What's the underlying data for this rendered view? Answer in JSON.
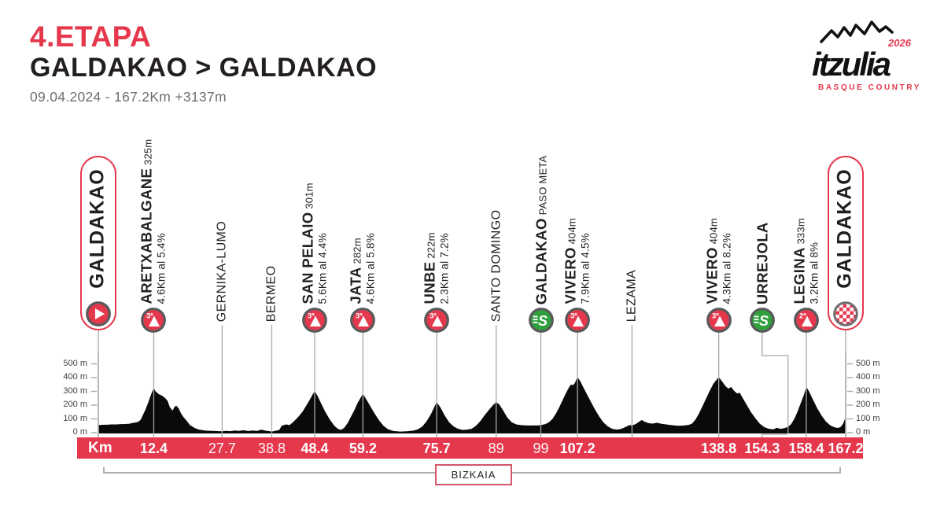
{
  "header": {
    "stage": "4.ETAPA",
    "route": "GALDAKAO > GALDAKAO",
    "meta": "09.04.2024 - 167.2Km  +3137m"
  },
  "logo": {
    "wordmark": "itzulia",
    "year": "2026",
    "subtitle": "BASQUE COUNTRY"
  },
  "colors": {
    "red": "#e5384d",
    "green": "#2fa03c",
    "black": "#0a0a0a",
    "icon_ring": "#58595b",
    "line_gray": "#a6a8ab",
    "text_gray": "#6d6e71"
  },
  "km_bar": {
    "label": "Km"
  },
  "region": {
    "label": "BIZKAIA"
  },
  "axis": {
    "tick_labels": [
      "0 m",
      "100 m",
      "200 m",
      "300 m",
      "400 m",
      "500 m"
    ],
    "tick_values": [
      0,
      100,
      200,
      300,
      400,
      500
    ]
  },
  "markers": [
    {
      "name": "GALDAKAO",
      "type": "start",
      "km": 0,
      "km_display": ""
    },
    {
      "name": "ARETXABALGANE",
      "alt": "325m",
      "detail": "4.6Km al 5.4%",
      "type": "climb",
      "cat": "3ª",
      "km": 12.4,
      "km_display": "12.4",
      "km_bold": true
    },
    {
      "name": "GERNIKA-LUMO",
      "type": "town",
      "km": 27.7,
      "km_display": "27.7",
      "km_bold": false
    },
    {
      "name": "BERMEO",
      "type": "town",
      "km": 38.8,
      "km_display": "38.8",
      "km_bold": false
    },
    {
      "name": "SAN PELAIO",
      "alt": "301m",
      "detail": "5.6Km al 4.4%",
      "type": "climb",
      "cat": "3ª",
      "km": 48.4,
      "km_display": "48.4",
      "km_bold": true
    },
    {
      "name": "JATA",
      "alt": "282m",
      "detail": "4.6Km al 5.8%",
      "type": "climb",
      "cat": "3ª",
      "km": 59.2,
      "km_display": "59.2",
      "km_bold": true
    },
    {
      "name": "UNBE",
      "alt": "222m",
      "detail": "2.3Km al 7.2%",
      "type": "climb",
      "cat": "3ª",
      "km": 75.7,
      "km_display": "75.7",
      "km_bold": true
    },
    {
      "name": "SANTO DOMINGO",
      "type": "town",
      "km": 89,
      "km_display": "89",
      "km_bold": false
    },
    {
      "name": "GALDAKAO",
      "alt": "PASO META",
      "type": "sprint",
      "km": 99,
      "km_display": "99",
      "km_bold": false
    },
    {
      "name": "VIVERO",
      "alt": "404m",
      "detail": "7.9Km al 4.5%",
      "type": "climb",
      "cat": "3ª",
      "km": 107.2,
      "km_display": "107.2",
      "km_bold": true
    },
    {
      "name": "LEZAMA",
      "type": "town",
      "km": 119.4,
      "km_display": ""
    },
    {
      "name": "VIVERO",
      "alt": "404m",
      "detail": "4.3Km al 8.2%",
      "type": "climb",
      "cat": "3ª",
      "km": 138.8,
      "km_display": "138.8",
      "km_bold": true
    },
    {
      "name": "URREJOLA",
      "type": "sprint",
      "km": 154.3,
      "display_km": 148.5,
      "km_display": "154.3",
      "km_bold": true
    },
    {
      "name": "LEGINA",
      "alt": "333m",
      "detail": "3.2Km al 8%",
      "type": "climb",
      "cat": "2ª",
      "km": 158.4,
      "km_display": "158.4",
      "km_bold": true
    },
    {
      "name": "GALDAKAO",
      "type": "finish",
      "km": 167.2,
      "km_display": "167.2",
      "km_bold": true
    }
  ],
  "chart_data": {
    "type": "area",
    "title": "Itzulia Basque Country - Stage 4 elevation profile",
    "xlabel": "Km",
    "ylabel": "m",
    "xlim": [
      0,
      167.2
    ],
    "ylim": [
      0,
      500
    ],
    "y_ticks": [
      0,
      100,
      200,
      300,
      400,
      500
    ],
    "total_km": 167.2,
    "total_climb_m": 3137,
    "profile_km_m": [
      [
        0,
        55
      ],
      [
        1,
        57
      ],
      [
        2,
        58
      ],
      [
        3,
        60
      ],
      [
        4,
        60
      ],
      [
        5,
        62
      ],
      [
        6,
        63
      ],
      [
        7,
        65
      ],
      [
        7.5,
        70
      ],
      [
        8,
        72
      ],
      [
        8.5,
        75
      ],
      [
        9,
        80
      ],
      [
        9.5,
        95
      ],
      [
        10,
        130
      ],
      [
        10.5,
        165
      ],
      [
        11,
        205
      ],
      [
        11.5,
        250
      ],
      [
        12,
        295
      ],
      [
        12.4,
        325
      ],
      [
        12.8,
        300
      ],
      [
        13.5,
        280
      ],
      [
        14.3,
        268
      ],
      [
        15,
        250
      ],
      [
        15.5,
        230
      ],
      [
        16,
        185
      ],
      [
        16.6,
        160
      ],
      [
        17.1,
        190
      ],
      [
        17.5,
        195
      ],
      [
        18,
        175
      ],
      [
        18.5,
        140
      ],
      [
        19,
        115
      ],
      [
        19.8,
        85
      ],
      [
        20.5,
        55
      ],
      [
        21.5,
        35
      ],
      [
        22.5,
        22
      ],
      [
        24,
        15
      ],
      [
        25.5,
        13
      ],
      [
        27,
        11
      ],
      [
        27.7,
        10
      ],
      [
        28.5,
        13
      ],
      [
        29.5,
        11
      ],
      [
        30.5,
        16
      ],
      [
        31.5,
        13
      ],
      [
        32.5,
        18
      ],
      [
        33.5,
        12
      ],
      [
        34.5,
        16
      ],
      [
        35.5,
        13
      ],
      [
        36.5,
        22
      ],
      [
        37.3,
        15
      ],
      [
        38,
        12
      ],
      [
        38.8,
        8
      ],
      [
        39.5,
        12
      ],
      [
        40.5,
        20
      ],
      [
        41,
        50
      ],
      [
        42,
        60
      ],
      [
        42.8,
        55
      ],
      [
        43.5,
        75
      ],
      [
        44.3,
        100
      ],
      [
        45,
        125
      ],
      [
        45.8,
        158
      ],
      [
        46.5,
        196
      ],
      [
        47.3,
        240
      ],
      [
        48,
        280
      ],
      [
        48.4,
        301
      ],
      [
        49,
        270
      ],
      [
        49.8,
        215
      ],
      [
        50.8,
        150
      ],
      [
        51.8,
        95
      ],
      [
        52.8,
        50
      ],
      [
        53.6,
        28
      ],
      [
        54.3,
        20
      ],
      [
        55,
        35
      ],
      [
        55.8,
        70
      ],
      [
        56.5,
        115
      ],
      [
        57.3,
        165
      ],
      [
        58,
        215
      ],
      [
        58.7,
        255
      ],
      [
        59.2,
        282
      ],
      [
        59.8,
        250
      ],
      [
        60.8,
        195
      ],
      [
        61.8,
        140
      ],
      [
        62.8,
        90
      ],
      [
        63.8,
        50
      ],
      [
        64.8,
        25
      ],
      [
        66,
        12
      ],
      [
        67.5,
        8
      ],
      [
        69,
        10
      ],
      [
        70.5,
        15
      ],
      [
        71.5,
        25
      ],
      [
        72.5,
        45
      ],
      [
        73.5,
        85
      ],
      [
        74.5,
        140
      ],
      [
        75.2,
        190
      ],
      [
        75.7,
        222
      ],
      [
        76.5,
        185
      ],
      [
        77.5,
        125
      ],
      [
        78.5,
        75
      ],
      [
        79.5,
        45
      ],
      [
        80.5,
        28
      ],
      [
        81.5,
        20
      ],
      [
        82.5,
        22
      ],
      [
        83.5,
        28
      ],
      [
        84.5,
        50
      ],
      [
        85.5,
        85
      ],
      [
        86.5,
        130
      ],
      [
        87.5,
        170
      ],
      [
        88.3,
        200
      ],
      [
        89,
        222
      ],
      [
        89.7,
        205
      ],
      [
        90.5,
        165
      ],
      [
        91.5,
        110
      ],
      [
        92.5,
        75
      ],
      [
        93.5,
        60
      ],
      [
        94.5,
        55
      ],
      [
        95.5,
        53
      ],
      [
        96.5,
        52
      ],
      [
        97.5,
        53
      ],
      [
        98.2,
        52
      ],
      [
        99,
        55
      ],
      [
        100,
        62
      ],
      [
        100.8,
        75
      ],
      [
        101.6,
        100
      ],
      [
        102.4,
        140
      ],
      [
        103.2,
        190
      ],
      [
        104,
        245
      ],
      [
        104.8,
        300
      ],
      [
        105.4,
        335
      ],
      [
        105.8,
        350
      ],
      [
        106.2,
        345
      ],
      [
        106.6,
        360
      ],
      [
        107.2,
        404
      ],
      [
        107.8,
        375
      ],
      [
        108.5,
        330
      ],
      [
        109.3,
        280
      ],
      [
        110.1,
        230
      ],
      [
        111,
        175
      ],
      [
        112,
        120
      ],
      [
        113,
        75
      ],
      [
        114,
        45
      ],
      [
        115,
        28
      ],
      [
        116,
        22
      ],
      [
        117,
        28
      ],
      [
        118,
        42
      ],
      [
        118.8,
        55
      ],
      [
        119.4,
        52
      ],
      [
        120.2,
        62
      ],
      [
        121,
        80
      ],
      [
        121.6,
        92
      ],
      [
        122.2,
        80
      ],
      [
        123,
        70
      ],
      [
        124,
        66
      ],
      [
        125,
        72
      ],
      [
        126,
        64
      ],
      [
        127,
        60
      ],
      [
        128,
        56
      ],
      [
        129,
        52
      ],
      [
        130,
        50
      ],
      [
        131,
        52
      ],
      [
        132,
        56
      ],
      [
        132.8,
        65
      ],
      [
        133.6,
        95
      ],
      [
        134.4,
        140
      ],
      [
        135.2,
        195
      ],
      [
        136,
        250
      ],
      [
        136.8,
        305
      ],
      [
        137.6,
        355
      ],
      [
        138.8,
        404
      ],
      [
        139.6,
        370
      ],
      [
        140.4,
        335
      ],
      [
        141,
        320
      ],
      [
        141.6,
        332
      ],
      [
        142.2,
        305
      ],
      [
        142.9,
        285
      ],
      [
        143.5,
        290
      ],
      [
        144.2,
        250
      ],
      [
        145,
        205
      ],
      [
        146,
        150
      ],
      [
        147,
        105
      ],
      [
        148,
        65
      ],
      [
        149,
        40
      ],
      [
        150,
        28
      ],
      [
        151,
        24
      ],
      [
        151.8,
        35
      ],
      [
        152.6,
        28
      ],
      [
        153.4,
        32
      ],
      [
        154.3,
        42
      ],
      [
        155,
        62
      ],
      [
        155.7,
        100
      ],
      [
        156.4,
        150
      ],
      [
        157.1,
        210
      ],
      [
        157.8,
        270
      ],
      [
        158.4,
        333
      ],
      [
        159,
        300
      ],
      [
        159.8,
        245
      ],
      [
        160.8,
        180
      ],
      [
        161.8,
        125
      ],
      [
        162.8,
        80
      ],
      [
        163.8,
        52
      ],
      [
        164.8,
        38
      ],
      [
        165.6,
        34
      ],
      [
        166.2,
        45
      ],
      [
        166.7,
        70
      ],
      [
        167.2,
        115
      ]
    ]
  }
}
